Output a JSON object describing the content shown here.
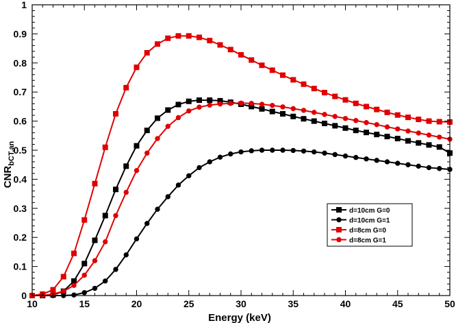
{
  "chart_data": {
    "type": "line",
    "title": "",
    "xlabel": "Energy (keV)",
    "ylabel": {
      "main": "CNR",
      "subscript": "bCT,an"
    },
    "xlim": [
      10,
      50
    ],
    "ylim": [
      0,
      1
    ],
    "xticks": [
      10,
      15,
      20,
      25,
      30,
      35,
      40,
      45,
      50
    ],
    "yticks": [
      0,
      0.1,
      0.2,
      0.3,
      0.4,
      0.5,
      0.6,
      0.7,
      0.8,
      0.9,
      1
    ],
    "ytick_labels": [
      "0",
      "0.1",
      "0.2",
      "0.3",
      "0.4",
      "0.5",
      "0.6",
      "0.7",
      "0.8",
      "0.9",
      "1"
    ],
    "grid": false,
    "legend_position": "lower-right",
    "x": [
      10,
      11,
      12,
      13,
      14,
      15,
      16,
      17,
      18,
      19,
      20,
      21,
      22,
      23,
      24,
      25,
      26,
      27,
      28,
      29,
      30,
      31,
      32,
      33,
      34,
      35,
      36,
      37,
      38,
      39,
      40,
      41,
      42,
      43,
      44,
      45,
      46,
      47,
      48,
      49,
      50
    ],
    "series": [
      {
        "name": "d=10cm G=0",
        "color": "#000000",
        "marker": "square",
        "values": [
          0,
          0,
          0.002,
          0.015,
          0.05,
          0.11,
          0.19,
          0.275,
          0.365,
          0.445,
          0.515,
          0.568,
          0.61,
          0.638,
          0.657,
          0.668,
          0.672,
          0.672,
          0.67,
          0.665,
          0.658,
          0.65,
          0.642,
          0.633,
          0.625,
          0.616,
          0.608,
          0.6,
          0.592,
          0.584,
          0.576,
          0.568,
          0.561,
          0.554,
          0.547,
          0.54,
          0.532,
          0.525,
          0.518,
          0.511,
          0.49
        ]
      },
      {
        "name": "d=10cm G=1",
        "color": "#000000",
        "marker": "circle",
        "values": [
          0,
          0,
          0,
          0,
          0.002,
          0.01,
          0.025,
          0.05,
          0.09,
          0.14,
          0.195,
          0.248,
          0.297,
          0.34,
          0.38,
          0.412,
          0.44,
          0.46,
          0.476,
          0.487,
          0.494,
          0.498,
          0.5,
          0.5,
          0.5,
          0.499,
          0.497,
          0.494,
          0.49,
          0.485,
          0.48,
          0.475,
          0.47,
          0.465,
          0.46,
          0.455,
          0.45,
          0.445,
          0.44,
          0.437,
          0.434
        ]
      },
      {
        "name": "d=8cm G=0",
        "color": "#e00000",
        "marker": "square",
        "values": [
          0,
          0.005,
          0.02,
          0.065,
          0.145,
          0.26,
          0.385,
          0.51,
          0.625,
          0.715,
          0.785,
          0.835,
          0.865,
          0.885,
          0.893,
          0.893,
          0.888,
          0.877,
          0.862,
          0.846,
          0.828,
          0.81,
          0.792,
          0.775,
          0.758,
          0.742,
          0.727,
          0.712,
          0.698,
          0.685,
          0.673,
          0.661,
          0.65,
          0.64,
          0.63,
          0.621,
          0.613,
          0.606,
          0.6,
          0.598,
          0.597
        ]
      },
      {
        "name": "d=8cm G=1",
        "color": "#e00000",
        "marker": "circle",
        "values": [
          0,
          0,
          0.005,
          0.015,
          0.035,
          0.07,
          0.12,
          0.185,
          0.275,
          0.355,
          0.43,
          0.49,
          0.54,
          0.582,
          0.612,
          0.635,
          0.648,
          0.655,
          0.659,
          0.661,
          0.662,
          0.661,
          0.658,
          0.654,
          0.649,
          0.643,
          0.637,
          0.63,
          0.623,
          0.616,
          0.609,
          0.602,
          0.595,
          0.588,
          0.58,
          0.573,
          0.566,
          0.559,
          0.552,
          0.545,
          0.538
        ]
      }
    ]
  }
}
